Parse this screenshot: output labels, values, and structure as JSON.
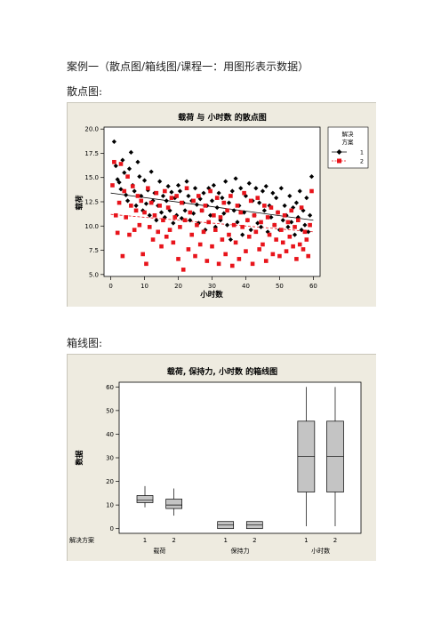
{
  "doc": {
    "case_title": "案例一（散点图/箱线图/课程一：用图形表示数据）",
    "scatter_heading": "散点图:",
    "box_heading": "箱线图:"
  },
  "chart_data": [
    {
      "type": "scatter",
      "title": "载荷 与 小时数 的散点图",
      "xlabel": "小时数",
      "ylabel": "载荷",
      "xlim": [
        -2,
        62
      ],
      "ylim": [
        4.8,
        20.2
      ],
      "xticks": [
        "0",
        "10",
        "20",
        "30",
        "40",
        "50",
        "60"
      ],
      "yticks": [
        "5.0",
        "7.5",
        "10.0",
        "12.5",
        "15.0",
        "17.5",
        "20.0"
      ],
      "legend": {
        "title_line1": "解决",
        "title_line2": "方案",
        "placement": "right"
      },
      "colors": {
        "series1": "#000000",
        "series2": "#e8141b"
      },
      "series": [
        {
          "name": "1",
          "marker": "diamond",
          "color": "#000000",
          "points": [
            [
              1,
              18.7
            ],
            [
              1.5,
              16.2
            ],
            [
              2,
              14.8
            ],
            [
              2.5,
              14.5
            ],
            [
              3,
              13.8
            ],
            [
              3.5,
              16.8
            ],
            [
              4,
              15.5
            ],
            [
              4.5,
              13.2
            ],
            [
              5,
              12.6
            ],
            [
              5.5,
              15.9
            ],
            [
              6,
              17.6
            ],
            [
              6.5,
              14.2
            ],
            [
              7,
              13.6
            ],
            [
              7.5,
              12.1
            ],
            [
              8,
              16.6
            ],
            [
              8.5,
              15.1
            ],
            [
              9,
              13.1
            ],
            [
              9.5,
              11.6
            ],
            [
              10,
              14.7
            ],
            [
              10.5,
              12.3
            ],
            [
              11,
              13.7
            ],
            [
              11.5,
              11.1
            ],
            [
              12,
              15.6
            ],
            [
              12.5,
              12.6
            ],
            [
              13,
              13.4
            ],
            [
              13.5,
              10.6
            ],
            [
              14,
              12.1
            ],
            [
              14.5,
              14.6
            ],
            [
              15,
              11.4
            ],
            [
              15.5,
              13.1
            ],
            [
              16,
              10.9
            ],
            [
              16.5,
              12.6
            ],
            [
              17,
              14.1
            ],
            [
              17.5,
              11.6
            ],
            [
              18,
              13.5
            ],
            [
              18.5,
              10.3
            ],
            [
              19,
              12.9
            ],
            [
              19.5,
              11.1
            ],
            [
              20,
              14.2
            ],
            [
              20.5,
              13.6
            ],
            [
              21,
              10.8
            ],
            [
              21.5,
              12.4
            ],
            [
              22,
              11.6
            ],
            [
              22.5,
              14.6
            ],
            [
              23,
              13.1
            ],
            [
              23.5,
              10.6
            ],
            [
              24,
              12.6
            ],
            [
              24.5,
              11.3
            ],
            [
              25,
              13.9
            ],
            [
              25.5,
              12.2
            ],
            [
              26,
              10.3
            ],
            [
              26.5,
              12.8
            ],
            [
              27,
              11.6
            ],
            [
              27.5,
              13.4
            ],
            [
              28,
              9.6
            ],
            [
              28.5,
              12.1
            ],
            [
              29,
              13.9
            ],
            [
              29.5,
              11.1
            ],
            [
              30,
              12.6
            ],
            [
              30.5,
              14.2
            ],
            [
              31,
              9.9
            ],
            [
              31.5,
              11.9
            ],
            [
              32,
              13.4
            ],
            [
              32.5,
              10.6
            ],
            [
              33,
              12.9
            ],
            [
              33.5,
              11.3
            ],
            [
              34,
              14.6
            ],
            [
              34.5,
              10.1
            ],
            [
              35,
              12.4
            ],
            [
              35.5,
              8.6
            ],
            [
              36,
              13.6
            ],
            [
              36.5,
              11.6
            ],
            [
              37,
              14.9
            ],
            [
              37.5,
              10.4
            ],
            [
              38,
              12.1
            ],
            [
              38.5,
              13.9
            ],
            [
              39,
              9.1
            ],
            [
              39.5,
              11.4
            ],
            [
              40,
              13.1
            ],
            [
              40.5,
              10.6
            ],
            [
              41,
              14.4
            ],
            [
              41.5,
              9.6
            ],
            [
              42,
              12.6
            ],
            [
              42.5,
              11.1
            ],
            [
              43,
              13.9
            ],
            [
              43.5,
              10.3
            ],
            [
              44,
              12.4
            ],
            [
              44.5,
              9.9
            ],
            [
              45,
              13.6
            ],
            [
              45.5,
              11.6
            ],
            [
              46,
              14.1
            ],
            [
              46.5,
              9.4
            ],
            [
              47,
              12.1
            ],
            [
              47.5,
              10.9
            ],
            [
              48,
              13.4
            ],
            [
              48.5,
              10.1
            ],
            [
              49,
              12.9
            ],
            [
              49.5,
              11.4
            ],
            [
              50,
              9.6
            ],
            [
              50.5,
              13.9
            ],
            [
              51,
              10.6
            ],
            [
              51.5,
              12.1
            ],
            [
              52,
              11.1
            ],
            [
              52.5,
              9.9
            ],
            [
              53,
              13.1
            ],
            [
              53.5,
              10.4
            ],
            [
              54,
              11.9
            ],
            [
              54.5,
              9.1
            ],
            [
              55,
              12.4
            ],
            [
              55.5,
              10.9
            ],
            [
              56,
              13.6
            ],
            [
              56.5,
              9.6
            ],
            [
              57,
              11.6
            ],
            [
              57.5,
              10.1
            ],
            [
              58,
              12.9
            ],
            [
              58.5,
              9.4
            ],
            [
              59,
              11.1
            ],
            [
              59.5,
              15.1
            ]
          ]
        },
        {
          "name": "2",
          "marker": "square",
          "color": "#e8141b",
          "points": [
            [
              0.5,
              14.2
            ],
            [
              1,
              16.6
            ],
            [
              1.5,
              11.1
            ],
            [
              2,
              9.3
            ],
            [
              2.5,
              12.4
            ],
            [
              3,
              16.4
            ],
            [
              3.5,
              6.9
            ],
            [
              4,
              13.6
            ],
            [
              4.5,
              10.9
            ],
            [
              5,
              15.1
            ],
            [
              5.5,
              9.1
            ],
            [
              6,
              12.1
            ],
            [
              6.5,
              14.1
            ],
            [
              7,
              9.6
            ],
            [
              7.5,
              11.6
            ],
            [
              8,
              13.1
            ],
            [
              8.5,
              10.1
            ],
            [
              9,
              12.6
            ],
            [
              9.5,
              7.1
            ],
            [
              10,
              11.4
            ],
            [
              10.5,
              6.1
            ],
            [
              11,
              13.9
            ],
            [
              11.5,
              9.9
            ],
            [
              12,
              12.4
            ],
            [
              12.5,
              8.6
            ],
            [
              13,
              11.1
            ],
            [
              13.5,
              13.4
            ],
            [
              14,
              9.4
            ],
            [
              14.5,
              12.1
            ],
            [
              15,
              7.9
            ],
            [
              15.5,
              10.6
            ],
            [
              16,
              13.6
            ],
            [
              16.5,
              8.9
            ],
            [
              17,
              11.9
            ],
            [
              17.5,
              9.6
            ],
            [
              18,
              12.9
            ],
            [
              18.5,
              8.3
            ],
            [
              19,
              10.9
            ],
            [
              19.5,
              13.1
            ],
            [
              20,
              6.6
            ],
            [
              20.5,
              9.9
            ],
            [
              21,
              12.4
            ],
            [
              21.5,
              5.5
            ],
            [
              22,
              10.6
            ],
            [
              22.5,
              13.9
            ],
            [
              23,
              7.6
            ],
            [
              23.5,
              11.4
            ],
            [
              24,
              9.1
            ],
            [
              24.5,
              12.6
            ],
            [
              25,
              6.9
            ],
            [
              25.5,
              10.1
            ],
            [
              26,
              13.1
            ],
            [
              26.5,
              8.1
            ],
            [
              27,
              11.6
            ],
            [
              27.5,
              9.4
            ],
            [
              28,
              12.1
            ],
            [
              28.5,
              6.4
            ],
            [
              29,
              10.4
            ],
            [
              29.5,
              13.6
            ],
            [
              30,
              7.9
            ],
            [
              30.5,
              11.1
            ],
            [
              31,
              9.6
            ],
            [
              31.5,
              12.9
            ],
            [
              32,
              6.1
            ],
            [
              32.5,
              10.9
            ],
            [
              33,
              8.6
            ],
            [
              33.5,
              12.4
            ],
            [
              34,
              7.1
            ],
            [
              34.5,
              11.6
            ],
            [
              35,
              9.1
            ],
            [
              35.5,
              13.1
            ],
            [
              36,
              5.9
            ],
            [
              36.5,
              10.1
            ],
            [
              37,
              8.3
            ],
            [
              37.5,
              12.1
            ],
            [
              38,
              6.6
            ],
            [
              38.5,
              11.4
            ],
            [
              39,
              9.9
            ],
            [
              39.5,
              13.4
            ],
            [
              40,
              7.4
            ],
            [
              40.5,
              10.6
            ],
            [
              41,
              8.9
            ],
            [
              41.5,
              12.6
            ],
            [
              42,
              6.1
            ],
            [
              42.5,
              11.1
            ],
            [
              43,
              9.4
            ],
            [
              43.5,
              12.9
            ],
            [
              44,
              7.6
            ],
            [
              44.5,
              10.4
            ],
            [
              45,
              8.1
            ],
            [
              45.5,
              12.1
            ],
            [
              46,
              6.4
            ],
            [
              46.5,
              10.9
            ],
            [
              47,
              9.1
            ],
            [
              47.5,
              11.9
            ],
            [
              48,
              7.1
            ],
            [
              48.5,
              10.1
            ],
            [
              49,
              8.6
            ],
            [
              49.5,
              11.4
            ],
            [
              50,
              6.9
            ],
            [
              50.5,
              9.6
            ],
            [
              51,
              8.3
            ],
            [
              51.5,
              11.1
            ],
            [
              52,
              7.4
            ],
            [
              52.5,
              10.4
            ],
            [
              53,
              8.9
            ],
            [
              53.5,
              11.6
            ],
            [
              54,
              7.9
            ],
            [
              54.5,
              9.9
            ],
            [
              55,
              6.6
            ],
            [
              55.5,
              10.6
            ],
            [
              56,
              8.1
            ],
            [
              56.5,
              11.9
            ],
            [
              57,
              7.6
            ],
            [
              57.5,
              9.4
            ],
            [
              58,
              8.6
            ],
            [
              58.5,
              6.9
            ],
            [
              59,
              10.1
            ],
            [
              59.5,
              13.6
            ]
          ]
        }
      ],
      "fit_lines": [
        {
          "series": "1",
          "x": [
            0,
            60
          ],
          "y": [
            13.4,
            10.6
          ]
        },
        {
          "series": "2",
          "x": [
            0,
            60
          ],
          "y": [
            11.2,
            9.4
          ]
        }
      ]
    },
    {
      "type": "box",
      "title": "载荷, 保持力, 小时数 的箱线图",
      "ylabel": "数据",
      "ylim": [
        -2,
        62
      ],
      "yticks": [
        "0",
        "10",
        "20",
        "30",
        "40",
        "50",
        "60"
      ],
      "group_row_label": "解决方案",
      "groups": [
        "载荷",
        "保持力",
        "小时数"
      ],
      "boxes": [
        {
          "group": "载荷",
          "label": "1",
          "min": 9,
          "q1": 11,
          "median": 12,
          "q3": 14,
          "max": 18
        },
        {
          "group": "载荷",
          "label": "2",
          "min": 5.5,
          "q1": 8.5,
          "median": 10,
          "q3": 12.5,
          "max": 17
        },
        {
          "group": "保持力",
          "label": "1",
          "min": 0,
          "q1": 0,
          "median": 1.5,
          "q3": 3,
          "max": 3
        },
        {
          "group": "保持力",
          "label": "2",
          "min": 0,
          "q1": 0,
          "median": 1.5,
          "q3": 3,
          "max": 3
        },
        {
          "group": "小时数",
          "label": "1",
          "min": 1,
          "q1": 15.5,
          "median": 30.5,
          "q3": 45.5,
          "max": 60
        },
        {
          "group": "小时数",
          "label": "2",
          "min": 1,
          "q1": 15.5,
          "median": 30.5,
          "q3": 45.5,
          "max": 60
        }
      ]
    }
  ]
}
